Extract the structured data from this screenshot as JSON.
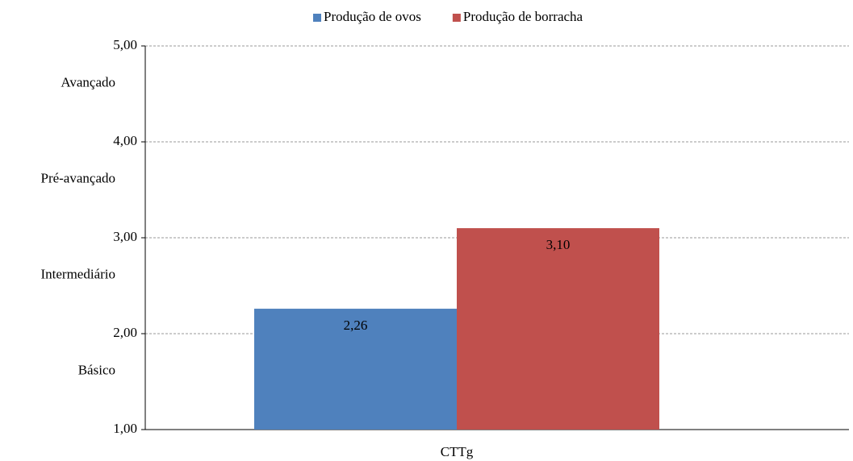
{
  "chart_data": {
    "type": "bar",
    "categories": [
      "CTTg"
    ],
    "series": [
      {
        "name": "Produção de ovos",
        "color": "#4f81bd",
        "values": [
          2.26
        ],
        "value_labels": [
          "2,26"
        ]
      },
      {
        "name": "Produção de borracha",
        "color": "#c0504d",
        "values": [
          3.1
        ],
        "value_labels": [
          "3,10"
        ]
      }
    ],
    "ylim": [
      1,
      5
    ],
    "yticks": [
      {
        "value": 1,
        "label": "1,00"
      },
      {
        "value": 2,
        "label": "2,00"
      },
      {
        "value": 3,
        "label": "3,00"
      },
      {
        "value": 4,
        "label": "4,00"
      },
      {
        "value": 5,
        "label": "5,00"
      }
    ],
    "annotations": [
      "Básico",
      "Intermediário",
      "Pré-avançado",
      "Avançado"
    ],
    "grid": true,
    "legend": "top"
  }
}
